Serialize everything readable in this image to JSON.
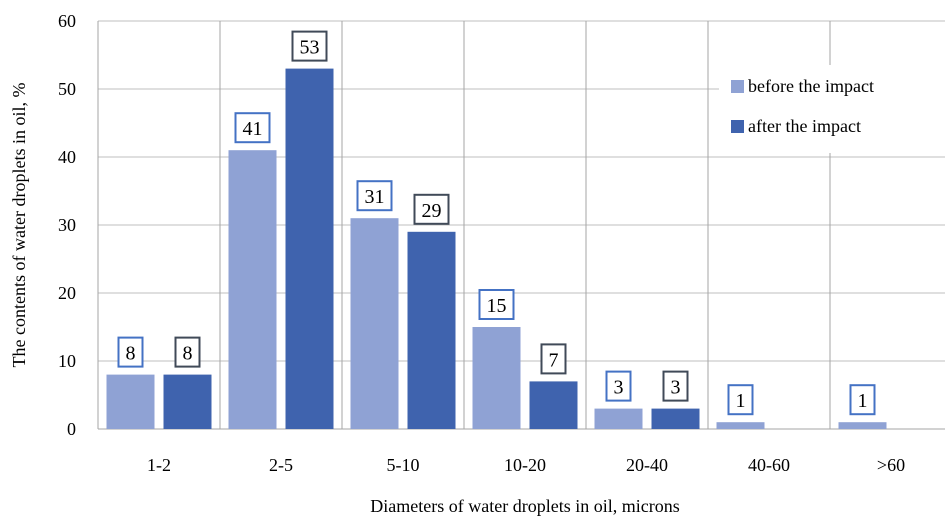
{
  "chart_data": {
    "type": "bar",
    "title": "",
    "xlabel": "Diameters of water droplets in oil, microns",
    "ylabel": "The contents of water droplets in oil, %",
    "ylim": [
      0,
      60
    ],
    "yticks": [
      0,
      10,
      20,
      30,
      40,
      50,
      60
    ],
    "categories": [
      "1-2",
      "2-5",
      "5-10",
      "10-20",
      "20-40",
      "40-60",
      ">60"
    ],
    "series": [
      {
        "name": "before the impact",
        "color": "#8fa2d4",
        "label_border": "#4472c4",
        "values": [
          8,
          41,
          31,
          15,
          3,
          1,
          1
        ]
      },
      {
        "name": "after the impact",
        "color": "#3f63ae",
        "label_border": "#404a58",
        "values": [
          8,
          53,
          29,
          7,
          3,
          null,
          null
        ]
      }
    ],
    "grid": true,
    "legend_position": "top-right"
  }
}
